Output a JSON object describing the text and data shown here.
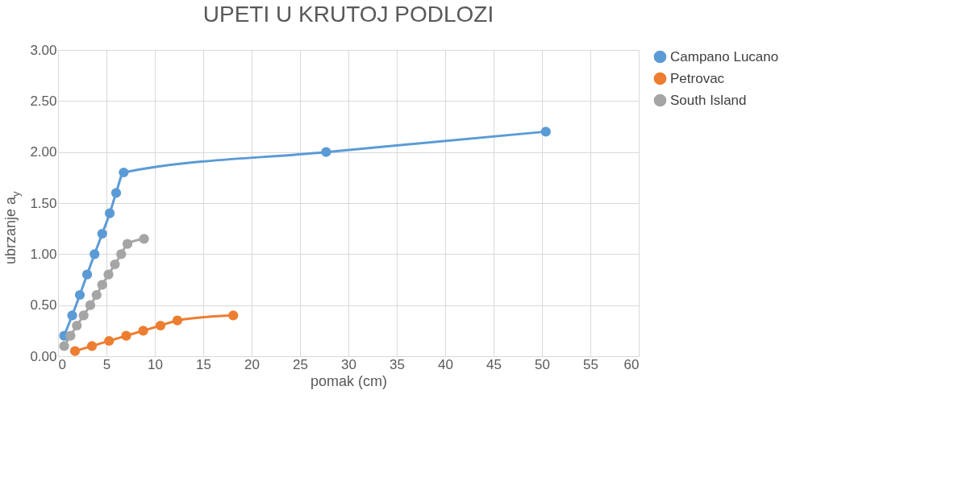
{
  "chart_data": {
    "type": "line",
    "title": "UPETI U KRUTOJ PODLOZI",
    "xlabel": "pomak (cm)",
    "ylabel": "ubrzanje a$_{y}$",
    "xlim": [
      0,
      60
    ],
    "xticks": [
      0,
      5,
      10,
      15,
      20,
      25,
      30,
      35,
      40,
      45,
      50,
      55,
      60
    ],
    "ylim": [
      0,
      3
    ],
    "yticks": [
      {
        "value": 0,
        "label": "0.00"
      },
      {
        "value": 0.5,
        "label": "0.50"
      },
      {
        "value": 1,
        "label": "1.00"
      },
      {
        "value": 1.5,
        "label": "1.50"
      },
      {
        "value": 2,
        "label": "2.00"
      },
      {
        "value": 2.5,
        "label": "2.50"
      },
      {
        "value": 3,
        "label": "3.00"
      }
    ],
    "grid": true,
    "legend": "right",
    "marker": "circle",
    "line_style": "solid",
    "series": [
      {
        "name": "Campano Lucano",
        "color": "#5b9bd5",
        "x": [
          0.63,
          1.46,
          2.25,
          3.0,
          3.77,
          4.56,
          5.34,
          6.0,
          6.78,
          27.7,
          50.4
        ],
        "values": [
          0.2,
          0.4,
          0.6,
          0.8,
          1.0,
          1.2,
          1.4,
          1.6,
          1.8,
          2.0,
          2.2
        ]
      },
      {
        "name": "Petrovac",
        "color": "#ed7d31",
        "x": [
          1.75,
          3.5,
          5.27,
          7.04,
          8.8,
          10.58,
          12.33,
          18.1
        ],
        "values": [
          0.05,
          0.1,
          0.15,
          0.2,
          0.25,
          0.3,
          0.35,
          0.4
        ]
      },
      {
        "name": "South Island",
        "color": "#a5a5a5",
        "x": [
          0.63,
          1.28,
          1.94,
          2.64,
          3.33,
          3.98,
          4.56,
          5.21,
          5.87,
          6.52,
          7.17,
          8.88
        ],
        "values": [
          0.1,
          0.2,
          0.3,
          0.4,
          0.5,
          0.6,
          0.7,
          0.8,
          0.9,
          1.0,
          1.1,
          1.15
        ]
      }
    ]
  }
}
